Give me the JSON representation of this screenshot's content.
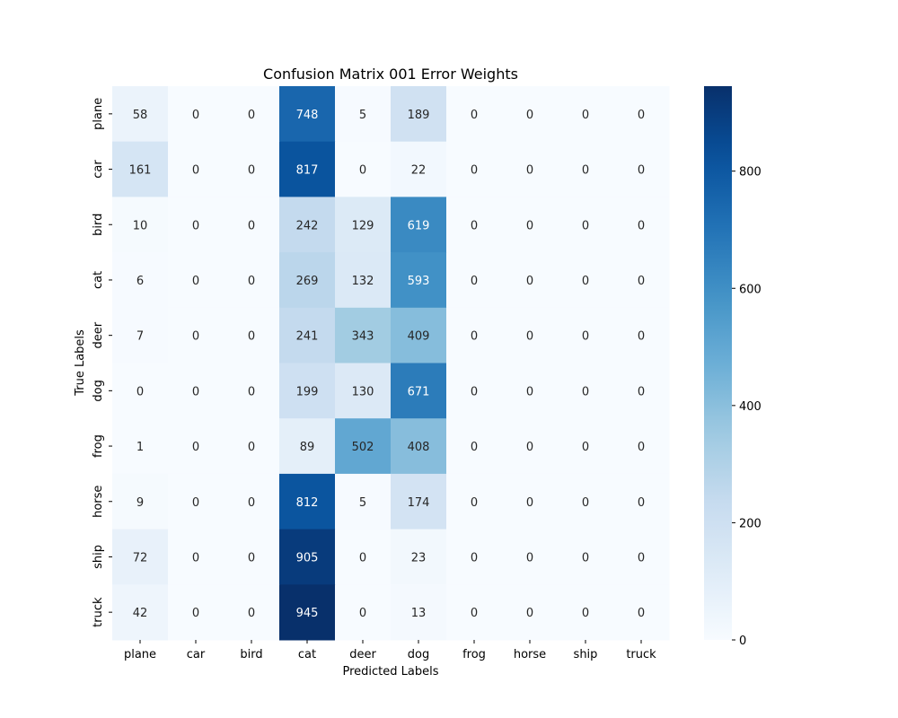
{
  "chart_data": {
    "type": "heatmap",
    "title": "Confusion Matrix 001 Error Weights",
    "xlabel": "Predicted Labels",
    "ylabel": "True Labels",
    "x_categories": [
      "plane",
      "car",
      "bird",
      "cat",
      "deer",
      "dog",
      "frog",
      "horse",
      "ship",
      "truck"
    ],
    "y_categories": [
      "plane",
      "car",
      "bird",
      "cat",
      "deer",
      "dog",
      "frog",
      "horse",
      "ship",
      "truck"
    ],
    "values": [
      [
        58,
        0,
        0,
        748,
        5,
        189,
        0,
        0,
        0,
        0
      ],
      [
        161,
        0,
        0,
        817,
        0,
        22,
        0,
        0,
        0,
        0
      ],
      [
        10,
        0,
        0,
        242,
        129,
        619,
        0,
        0,
        0,
        0
      ],
      [
        6,
        0,
        0,
        269,
        132,
        593,
        0,
        0,
        0,
        0
      ],
      [
        7,
        0,
        0,
        241,
        343,
        409,
        0,
        0,
        0,
        0
      ],
      [
        0,
        0,
        0,
        199,
        130,
        671,
        0,
        0,
        0,
        0
      ],
      [
        1,
        0,
        0,
        89,
        502,
        408,
        0,
        0,
        0,
        0
      ],
      [
        9,
        0,
        0,
        812,
        5,
        174,
        0,
        0,
        0,
        0
      ],
      [
        72,
        0,
        0,
        905,
        0,
        23,
        0,
        0,
        0,
        0
      ],
      [
        42,
        0,
        0,
        945,
        0,
        13,
        0,
        0,
        0,
        0
      ]
    ],
    "colormap": "Blues",
    "colorbar": {
      "range": [
        0,
        945
      ],
      "ticks": [
        0,
        200,
        400,
        600,
        800
      ]
    }
  }
}
